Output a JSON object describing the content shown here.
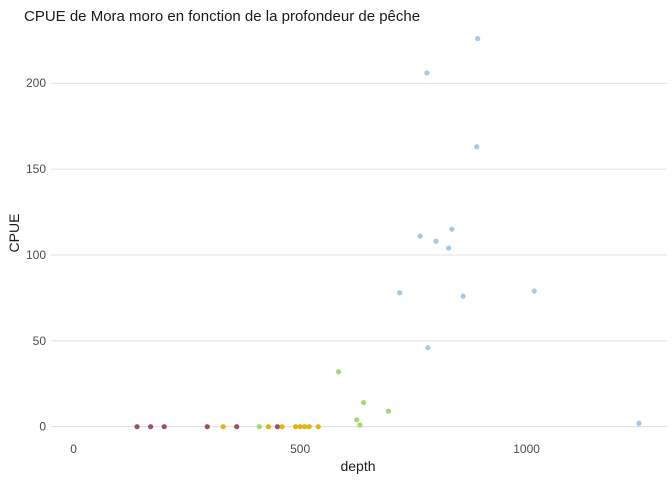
{
  "chart_data": {
    "type": "scatter",
    "title": "CPUE de Mora moro en fonction de la profondeur de pêche",
    "xlabel": "depth",
    "ylabel": "CPUE",
    "xlim": [
      -50,
      1310
    ],
    "ylim": [
      -6,
      231
    ],
    "x_ticks": [
      0,
      500,
      1000
    ],
    "y_ticks": [
      0,
      50,
      100,
      150,
      200
    ],
    "grid": "horizontal major lines only",
    "legend": "none",
    "colors": {
      "crimson": "#9b4360",
      "gold": "#e1b000",
      "green": "#a3d66d",
      "blue": "#9dc8e3"
    },
    "series": [
      {
        "color_key": "crimson",
        "points": [
          {
            "x": 140,
            "y": 0
          },
          {
            "x": 170,
            "y": 0
          },
          {
            "x": 200,
            "y": 0
          },
          {
            "x": 295,
            "y": 0
          },
          {
            "x": 360,
            "y": 0
          },
          {
            "x": 450,
            "y": 0
          }
        ]
      },
      {
        "color_key": "gold",
        "points": [
          {
            "x": 330,
            "y": 0
          },
          {
            "x": 430,
            "y": 0
          },
          {
            "x": 460,
            "y": 0
          },
          {
            "x": 490,
            "y": 0
          },
          {
            "x": 500,
            "y": 0
          },
          {
            "x": 510,
            "y": 0
          },
          {
            "x": 520,
            "y": 0
          },
          {
            "x": 540,
            "y": 0
          }
        ]
      },
      {
        "color_key": "green",
        "points": [
          {
            "x": 410,
            "y": 0
          },
          {
            "x": 585,
            "y": 32
          },
          {
            "x": 625,
            "y": 4
          },
          {
            "x": 632,
            "y": 1
          },
          {
            "x": 640,
            "y": 14
          },
          {
            "x": 695,
            "y": 9
          }
        ]
      },
      {
        "color_key": "blue",
        "points": [
          {
            "x": 720,
            "y": 78
          },
          {
            "x": 765,
            "y": 111
          },
          {
            "x": 780,
            "y": 206
          },
          {
            "x": 782,
            "y": 46
          },
          {
            "x": 800,
            "y": 108
          },
          {
            "x": 828,
            "y": 104
          },
          {
            "x": 835,
            "y": 115
          },
          {
            "x": 860,
            "y": 76
          },
          {
            "x": 890,
            "y": 163
          },
          {
            "x": 892,
            "y": 226
          },
          {
            "x": 1017,
            "y": 79
          },
          {
            "x": 1248,
            "y": 2
          }
        ]
      }
    ]
  }
}
